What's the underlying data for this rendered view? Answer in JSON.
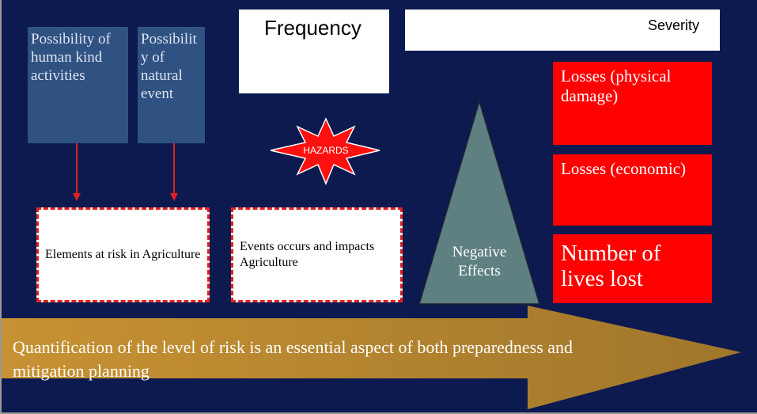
{
  "header": {
    "frequency": "Frequency",
    "severity": "Severity"
  },
  "sources": [
    {
      "label": "Possibility of human kind activities"
    },
    {
      "label": "Possibility of natural event"
    }
  ],
  "hazard": {
    "label": "HAZARDS"
  },
  "impacts": [
    {
      "label": "Elements at risk in Agriculture"
    },
    {
      "label": "Events occurs and impacts Agriculture"
    }
  ],
  "effects": {
    "label": "Negative Effects"
  },
  "losses": [
    {
      "label": "Losses (physical damage)"
    },
    {
      "label": "Losses (economic)"
    },
    {
      "label": "Number of lives lost"
    }
  ],
  "banner": {
    "text": "Quantification of the level of risk is an essential aspect of both preparedness and mitigation planning"
  }
}
